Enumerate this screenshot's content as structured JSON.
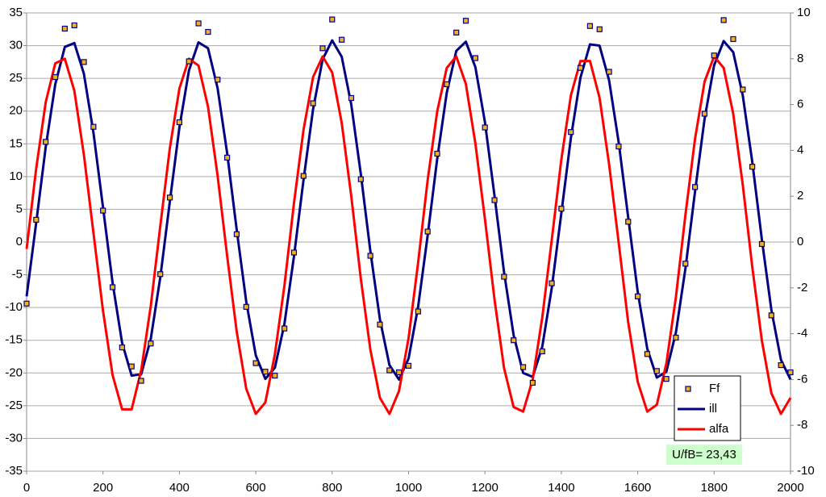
{
  "chart_data": {
    "type": "line",
    "x": [
      0,
      25,
      50,
      75,
      100,
      125,
      150,
      175,
      200,
      225,
      250,
      275,
      300,
      325,
      350,
      375,
      400,
      425,
      450,
      475,
      500,
      525,
      550,
      575,
      600,
      625,
      650,
      675,
      700,
      725,
      750,
      775,
      800,
      825,
      850,
      875,
      900,
      925,
      950,
      975,
      1000,
      1025,
      1050,
      1075,
      1100,
      1125,
      1150,
      1175,
      1200,
      1225,
      1250,
      1275,
      1300,
      1325,
      1350,
      1375,
      1400,
      1425,
      1450,
      1475,
      1500,
      1525,
      1550,
      1575,
      1600,
      1625,
      1650,
      1675,
      1700,
      1725,
      1750,
      1775,
      1800,
      1825,
      1850,
      1875,
      1900,
      1925,
      1950,
      1975,
      2000
    ],
    "series": [
      {
        "name": "Ff",
        "type": "scatter",
        "color": "#f0b020",
        "edgecolor": "#000080",
        "values": [
          -9.4,
          3.4,
          15.3,
          25.2,
          32.6,
          33.1,
          27.5,
          17.6,
          4.8,
          -6.9,
          -16.1,
          -19.0,
          -21.2,
          -15.5,
          -4.9,
          6.8,
          18.3,
          27.6,
          33.4,
          32.1,
          24.8,
          12.9,
          1.2,
          -9.9,
          -18.5,
          -19.8,
          -20.4,
          -13.2,
          -1.6,
          10.1,
          21.2,
          29.6,
          34.0,
          30.9,
          22.0,
          9.6,
          -2.1,
          -12.6,
          -19.6,
          -19.9,
          -18.9,
          -10.6,
          1.6,
          13.5,
          24.1,
          32.0,
          33.8,
          28.1,
          17.5,
          6.4,
          -5.3,
          -15.0,
          -19.1,
          -21.5,
          -16.7,
          -6.3,
          5.1,
          16.8,
          26.6,
          33.0,
          32.5,
          26.0,
          14.6,
          3.1,
          -8.3,
          -17.1,
          -19.7,
          -20.9,
          -14.6,
          -3.3,
          8.4,
          19.6,
          28.5,
          33.9,
          31.0,
          23.3,
          11.5,
          -0.3,
          -11.2,
          -18.8,
          -19.9
        ]
      },
      {
        "name": "ill",
        "type": "line",
        "color": "#000080",
        "values": [
          -8.3,
          2.9,
          14.5,
          24.1,
          29.8,
          30.4,
          25.7,
          16.7,
          5.3,
          -6.2,
          -15.4,
          -20.4,
          -20.2,
          -14.8,
          -5.4,
          6.2,
          17.5,
          26.2,
          30.5,
          29.6,
          23.5,
          13.6,
          1.9,
          -9.1,
          -17.3,
          -20.9,
          -19.2,
          -12.5,
          -2.2,
          9.5,
          20.3,
          27.9,
          30.8,
          28.3,
          21.0,
          10.4,
          -1.4,
          -11.8,
          -18.8,
          -21.0,
          -17.8,
          -9.9,
          1.0,
          12.7,
          22.8,
          29.2,
          30.6,
          26.7,
          18.3,
          7.1,
          -4.6,
          -14.2,
          -20.0,
          -20.6,
          -16.0,
          -7.0,
          4.4,
          15.9,
          25.1,
          30.2,
          30.0,
          24.7,
          15.3,
          3.8,
          -7.6,
          -16.3,
          -20.7,
          -19.8,
          -13.8,
          -4.0,
          7.7,
          18.8,
          27.0,
          30.7,
          29.0,
          22.4,
          12.2,
          0.4,
          -10.4,
          -18.0,
          -21.0
        ]
      },
      {
        "name": "alfa",
        "type": "line",
        "color": "#ff0000",
        "axis": "y2",
        "values": [
          -0.3,
          3.2,
          6.1,
          7.8,
          8.0,
          6.6,
          3.8,
          0.4,
          -3.0,
          -5.8,
          -7.3,
          -7.3,
          -5.6,
          -2.8,
          0.7,
          4.1,
          6.7,
          8.0,
          7.7,
          5.9,
          2.9,
          -0.6,
          -3.9,
          -6.4,
          -7.5,
          -7.0,
          -4.9,
          -1.9,
          1.7,
          4.9,
          7.2,
          8.1,
          7.4,
          5.2,
          2.0,
          -1.6,
          -4.7,
          -6.8,
          -7.5,
          -6.5,
          -4.2,
          -0.9,
          2.7,
          5.7,
          7.6,
          8.1,
          6.9,
          4.3,
          1.0,
          -2.5,
          -5.5,
          -7.2,
          -7.4,
          -6.0,
          -3.3,
          0.1,
          3.6,
          6.4,
          7.9,
          7.9,
          6.3,
          3.4,
          0.0,
          -3.5,
          -6.1,
          -7.4,
          -7.1,
          -5.3,
          -2.4,
          1.2,
          4.5,
          7.0,
          8.1,
          7.6,
          5.6,
          2.5,
          -1.1,
          -4.3,
          -6.6,
          -7.5,
          -6.8
        ]
      }
    ],
    "xlim": [
      0,
      2000
    ],
    "xticks": [
      0,
      200,
      400,
      600,
      800,
      1000,
      1200,
      1400,
      1600,
      1800,
      2000
    ],
    "ylim": [
      -35,
      35
    ],
    "yticks": [
      -35,
      -30,
      -25,
      -20,
      -15,
      -10,
      -5,
      0,
      5,
      10,
      15,
      20,
      25,
      30,
      35
    ],
    "y2lim": [
      -10,
      10
    ],
    "y2ticks": [
      -10,
      -8,
      -6,
      -4,
      -2,
      0,
      2,
      4,
      6,
      8,
      10
    ],
    "grid": true,
    "legend": "lower right",
    "annotation": "U/fB= 23,43"
  }
}
